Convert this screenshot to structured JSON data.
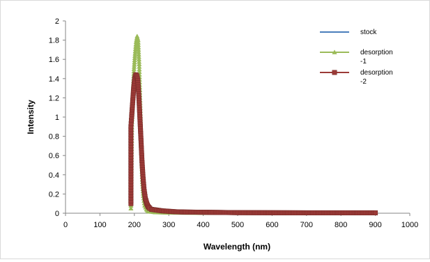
{
  "chart_data": {
    "type": "line",
    "xlabel": "Wavelength (nm)",
    "ylabel": "Intensity",
    "xlim": [
      0,
      1000
    ],
    "ylim": [
      0,
      2
    ],
    "xticks": [
      0,
      100,
      200,
      300,
      400,
      500,
      600,
      700,
      800,
      900,
      1000
    ],
    "yticks": [
      0,
      0.2,
      0.4,
      0.6,
      0.8,
      1,
      1.2,
      1.4,
      1.6,
      1.8,
      2
    ],
    "ytick_labels": [
      "0",
      "0.2",
      "0.4",
      "0.6",
      "0.8",
      "1",
      "1.2",
      "1.4",
      "1.6",
      "1.8",
      "2"
    ],
    "grid": false,
    "legend_position": "top-right",
    "series": [
      {
        "name": "stock",
        "color": "#4a7ebb",
        "marker": "none",
        "x": [
          190,
          193,
          196,
          199,
          202,
          205,
          208,
          211,
          214,
          217,
          220,
          223,
          226,
          230,
          235,
          240,
          250,
          260,
          280,
          300,
          350,
          400,
          500,
          600,
          700,
          800,
          900
        ],
        "y": [
          0.05,
          0.9,
          1.2,
          1.45,
          1.6,
          1.72,
          1.8,
          1.75,
          1.5,
          1.1,
          0.7,
          0.4,
          0.22,
          0.1,
          0.05,
          0.03,
          0.02,
          0.015,
          0.01,
          0.008,
          0.006,
          0.005,
          0.004,
          0.003,
          0.002,
          0.002,
          0.002
        ]
      },
      {
        "name": "desorption\n-1",
        "color": "#9bbb59",
        "marker": "triangle",
        "x": [
          190,
          193,
          196,
          199,
          202,
          205,
          208,
          211,
          214,
          217,
          220,
          223,
          226,
          230,
          235,
          240,
          250,
          260,
          280,
          300,
          350,
          400,
          500,
          600,
          700,
          800,
          900
        ],
        "y": [
          0.05,
          0.95,
          1.25,
          1.5,
          1.66,
          1.78,
          1.84,
          1.8,
          1.55,
          1.12,
          0.68,
          0.35,
          0.18,
          0.08,
          0.04,
          0.02,
          0.015,
          0.01,
          0.008,
          0.006,
          0.005,
          0.004,
          0.003,
          0.002,
          0.002,
          0.002,
          0.002
        ]
      },
      {
        "name": "desorption\n-2",
        "color": "#9b3a37",
        "marker": "square",
        "x": [
          190,
          190,
          192,
          195,
          198,
          201,
          204,
          207,
          210,
          213,
          216,
          219,
          222,
          225,
          228,
          232,
          236,
          240,
          245,
          250,
          260,
          270,
          280,
          300,
          320,
          350,
          400,
          450,
          500,
          600,
          700,
          800,
          900
        ],
        "y": [
          0.1,
          0.9,
          1.0,
          1.15,
          1.3,
          1.4,
          1.44,
          1.43,
          1.38,
          1.22,
          1.0,
          0.78,
          0.55,
          0.38,
          0.25,
          0.15,
          0.1,
          0.07,
          0.05,
          0.04,
          0.035,
          0.03,
          0.025,
          0.02,
          0.015,
          0.012,
          0.01,
          0.008,
          0.006,
          0.005,
          0.004,
          0.004,
          0.004
        ]
      }
    ]
  }
}
